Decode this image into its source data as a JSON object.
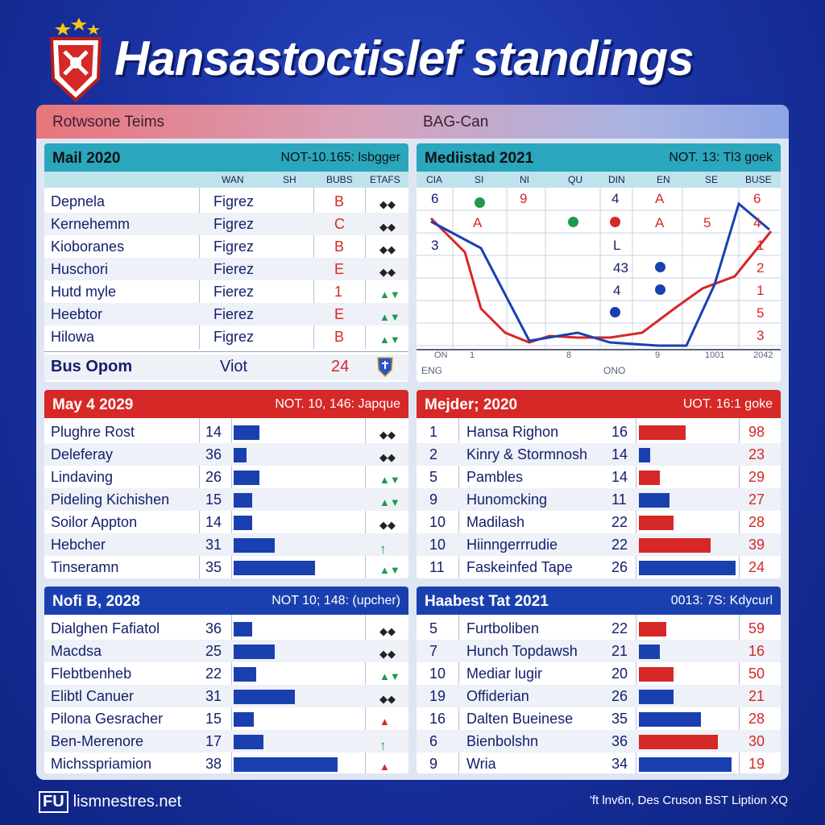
{
  "page": {
    "title": "Hansastoctislef standings",
    "topbar": {
      "left": "Rotwsone Teims",
      "right": "BAG-Can"
    },
    "footer": {
      "brand": "lismnestres.net",
      "right": "'ft lnv6n, Des Cruson BST Liption XQ"
    }
  },
  "colors": {
    "red": "#d62826",
    "blue": "#1a40b0",
    "teal": "#2aa6bd",
    "green": "#1e9a4c"
  },
  "panel1": {
    "title": "Mail 2020",
    "subtitle": "NOT-10.165: lsbgger",
    "columns": [
      "WAN",
      "SH",
      "BUBS",
      "ETAFS"
    ],
    "rows": [
      {
        "team": "Depnela",
        "val": "Figrez",
        "grade": "B",
        "icon": "dark"
      },
      {
        "team": "Kernehemm",
        "val": "Figrez",
        "grade": "C",
        "icon": "dark"
      },
      {
        "team": "Kioboranes",
        "val": "Figrez",
        "grade": "B",
        "icon": "dark"
      },
      {
        "team": "Huschori",
        "val": "Fierez",
        "grade": "E",
        "icon": "dark"
      },
      {
        "team": "Hutd myle",
        "val": "Fierez",
        "grade": "1",
        "icon": "green"
      },
      {
        "team": "Heebtor",
        "val": "Fierez",
        "grade": "E",
        "icon": "green"
      },
      {
        "team": "Hilowa",
        "val": "Figrez",
        "grade": "B",
        "icon": "green"
      }
    ],
    "footer": {
      "label": "Bus Opom",
      "val": "Viot",
      "num": "24"
    }
  },
  "panel2": {
    "title": "Mediistad 2021",
    "subtitle": "NOT. 13: Tl3 goek",
    "columns": [
      "CIA",
      "SI",
      "NI",
      "QU",
      "DIN",
      "EN",
      "SE",
      "BUSE"
    ],
    "row1": [
      "6",
      "9",
      "4",
      "A",
      "6"
    ],
    "row2": [
      "A",
      "A",
      "5",
      "4"
    ],
    "left_label": "3",
    "right_col": [
      "1",
      "2",
      "1",
      "5",
      "3"
    ],
    "mid_col": [
      "L",
      "43",
      "4"
    ],
    "axis_labels": [
      "ON",
      "1",
      "8",
      "9",
      "1001",
      "2042"
    ],
    "footer_left": "ENG",
    "footer_mid": "ONO"
  },
  "panel3": {
    "title": "May 4 2029",
    "subtitle": "NOT. 10, 146: Japque",
    "rows": [
      {
        "team": "Plughre Rost",
        "num": "14",
        "value": 14,
        "icon": "dark"
      },
      {
        "team": "Deleferay",
        "num": "36",
        "value": 7,
        "icon": "dark"
      },
      {
        "team": "Lindaving",
        "num": "26",
        "value": 14,
        "icon": "green"
      },
      {
        "team": "Pideling Kichishen",
        "num": "15",
        "value": 10,
        "icon": "green"
      },
      {
        "team": "Soilor Appton",
        "num": "14",
        "value": 10,
        "icon": "dark"
      },
      {
        "team": "Hebcher",
        "num": "31",
        "value": 22,
        "icon": "up"
      },
      {
        "team": "Tinseramn",
        "num": "35",
        "value": 44,
        "icon": "green"
      }
    ]
  },
  "panel4": {
    "title": "Mejder; 2020",
    "subtitle": "UOT. 16:1 goke",
    "rows": [
      {
        "rank": "1",
        "team": "Hansa Righon",
        "num": "16",
        "value": 24,
        "color": "red",
        "score": "98"
      },
      {
        "rank": "2",
        "team": "Kinry & Stormnosh",
        "num": "14",
        "value": 6,
        "color": "blue",
        "score": "23"
      },
      {
        "rank": "5",
        "team": "Pambles",
        "num": "14",
        "value": 11,
        "color": "red",
        "score": "29"
      },
      {
        "rank": "9",
        "team": "Hunomcking",
        "num": "11",
        "value": 16,
        "color": "blue",
        "score": "27"
      },
      {
        "rank": "10",
        "team": "Madilash",
        "num": "22",
        "value": 18,
        "color": "red",
        "score": "28"
      },
      {
        "rank": "10",
        "team": "Hiinngerrrudie",
        "num": "22",
        "value": 37,
        "color": "red",
        "score": "39"
      },
      {
        "rank": "11",
        "team": "Faskeinfed Tape",
        "num": "26",
        "value": 50,
        "color": "blue",
        "score": "24"
      }
    ]
  },
  "panel5": {
    "title": "Nofi B, 2028",
    "subtitle": "NOT 10; 148: (upcher)",
    "rows": [
      {
        "team": "Dialghen Fafiatol",
        "num": "36",
        "value": 10,
        "icon": "dark"
      },
      {
        "team": "Macdsa",
        "num": "25",
        "value": 22,
        "icon": "dark"
      },
      {
        "team": "Flebtbenheb",
        "num": "22",
        "value": 12,
        "icon": "green"
      },
      {
        "team": "Elibtl Canuer",
        "num": "31",
        "value": 33,
        "icon": "dark"
      },
      {
        "team": "Pilona Gesracher",
        "num": "15",
        "value": 11,
        "icon": "warn"
      },
      {
        "team": "Ben-Merenore",
        "num": "17",
        "value": 16,
        "icon": "up"
      },
      {
        "team": "Michsspriamion",
        "num": "38",
        "value": 56,
        "icon": "warn"
      }
    ]
  },
  "panel6": {
    "title": "Haabest Tat 2021",
    "subtitle": "0013: 7S: Kdycurl",
    "rows": [
      {
        "rank": "5",
        "team": "Furtboliben",
        "num": "22",
        "value": 14,
        "color": "red",
        "score": "59"
      },
      {
        "rank": "7",
        "team": "Hunch Topdawsh",
        "num": "21",
        "value": 11,
        "color": "blue",
        "score": "16"
      },
      {
        "rank": "10",
        "team": "Mediar lugir",
        "num": "20",
        "value": 18,
        "color": "red",
        "score": "50"
      },
      {
        "rank": "19",
        "team": "Offiderian",
        "num": "26",
        "value": 18,
        "color": "blue",
        "score": "21"
      },
      {
        "rank": "16",
        "team": "Dalten Bueinese",
        "num": "35",
        "value": 32,
        "color": "blue",
        "score": "28"
      },
      {
        "rank": "6",
        "team": "Bienbolshn",
        "num": "36",
        "value": 41,
        "color": "red",
        "score": "30"
      },
      {
        "rank": "9",
        "team": "Wria",
        "num": "34",
        "value": 48,
        "color": "blue",
        "score": "19"
      }
    ]
  }
}
